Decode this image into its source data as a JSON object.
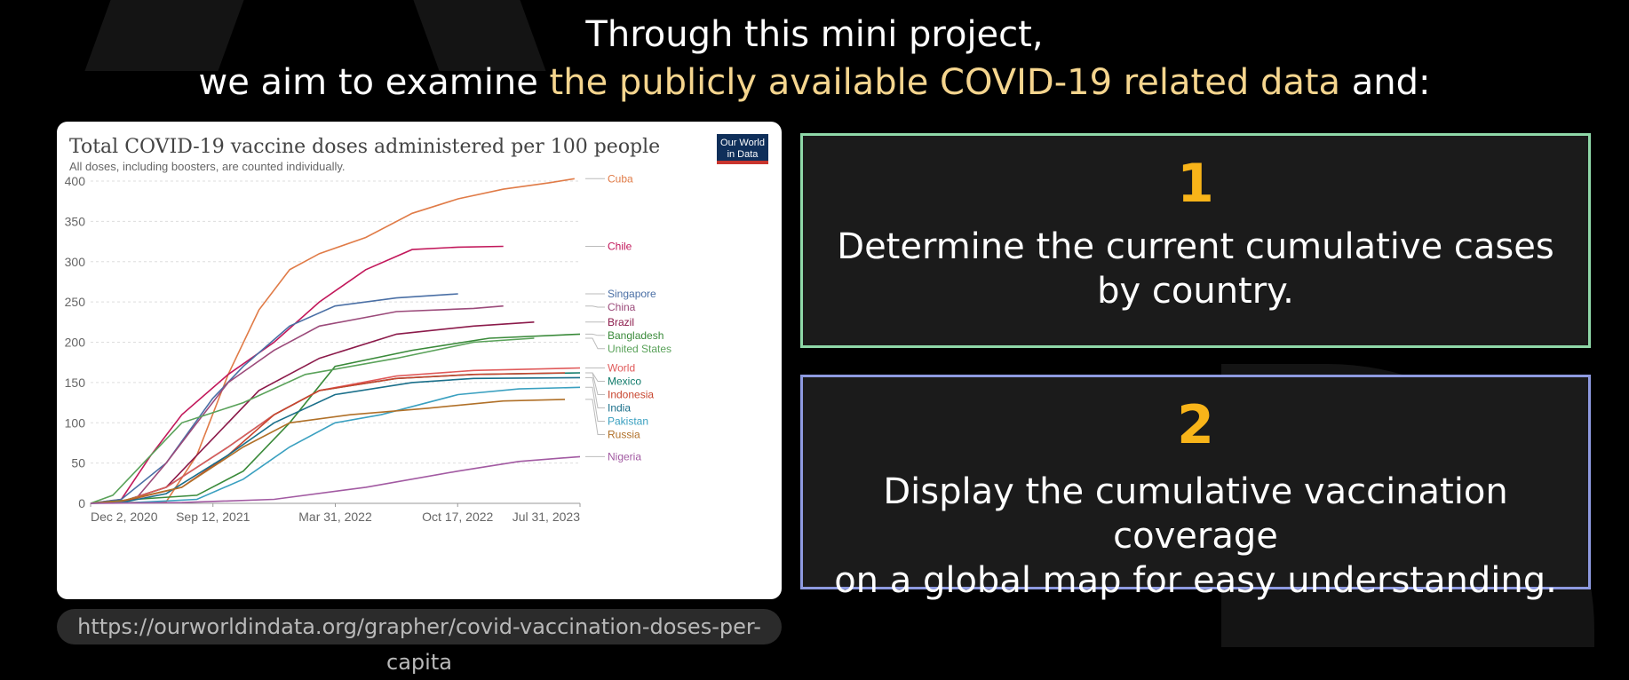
{
  "header": {
    "line1": "Through this mini project,",
    "line2_pre": "we aim to examine ",
    "line2_highlight": "the publicly available COVID-19 related data",
    "line2_post": " and:"
  },
  "chart_data": {
    "type": "line",
    "title": "Total COVID-19 vaccine doses administered per 100 people",
    "subtitle": "All doses, including boosters, are counted individually.",
    "logo": "Our World in Data",
    "x_ticks": [
      "Dec 2, 2020",
      "Sep 12, 2021",
      "Mar 31, 2022",
      "Oct 17, 2022",
      "Jul 31, 2023"
    ],
    "y_ticks": [
      0,
      50,
      100,
      150,
      200,
      250,
      300,
      350,
      400
    ],
    "ylim": [
      0,
      400
    ],
    "xlim": [
      "2020-12-02",
      "2023-07-31"
    ],
    "grid": true,
    "legend_position": "right (line-end labels)",
    "series": [
      {
        "name": "Cuba",
        "color": "#e07b47",
        "points": [
          [
            "2020-12-02",
            0
          ],
          [
            "2021-05-01",
            2
          ],
          [
            "2021-07-01",
            60
          ],
          [
            "2021-09-01",
            160
          ],
          [
            "2021-11-01",
            240
          ],
          [
            "2022-01-01",
            290
          ],
          [
            "2022-03-01",
            310
          ],
          [
            "2022-06-01",
            330
          ],
          [
            "2022-09-01",
            360
          ],
          [
            "2022-12-01",
            378
          ],
          [
            "2023-03-01",
            390
          ],
          [
            "2023-06-01",
            398
          ],
          [
            "2023-07-20",
            403
          ]
        ]
      },
      {
        "name": "Chile",
        "color": "#c2185b",
        "points": [
          [
            "2020-12-02",
            0
          ],
          [
            "2021-02-01",
            5
          ],
          [
            "2021-04-01",
            60
          ],
          [
            "2021-06-01",
            110
          ],
          [
            "2021-09-01",
            160
          ],
          [
            "2021-12-01",
            200
          ],
          [
            "2022-03-01",
            250
          ],
          [
            "2022-06-01",
            290
          ],
          [
            "2022-09-01",
            315
          ],
          [
            "2022-12-01",
            318
          ],
          [
            "2023-03-01",
            319
          ]
        ]
      },
      {
        "name": "Singapore",
        "color": "#4a6fa5",
        "points": [
          [
            "2020-12-02",
            0
          ],
          [
            "2021-02-01",
            5
          ],
          [
            "2021-05-01",
            50
          ],
          [
            "2021-08-01",
            130
          ],
          [
            "2021-10-01",
            170
          ],
          [
            "2022-01-01",
            220
          ],
          [
            "2022-04-01",
            245
          ],
          [
            "2022-08-01",
            255
          ],
          [
            "2022-12-01",
            260
          ]
        ]
      },
      {
        "name": "China",
        "color": "#9b4a7a",
        "points": [
          [
            "2020-12-02",
            0
          ],
          [
            "2021-03-01",
            5
          ],
          [
            "2021-05-01",
            50
          ],
          [
            "2021-07-01",
            100
          ],
          [
            "2021-09-01",
            150
          ],
          [
            "2021-12-01",
            190
          ],
          [
            "2022-03-01",
            220
          ],
          [
            "2022-08-01",
            238
          ],
          [
            "2023-01-01",
            242
          ],
          [
            "2023-03-01",
            245
          ]
        ]
      },
      {
        "name": "Brazil",
        "color": "#8b1a4a",
        "points": [
          [
            "2020-12-02",
            0
          ],
          [
            "2021-02-01",
            2
          ],
          [
            "2021-05-01",
            20
          ],
          [
            "2021-08-01",
            80
          ],
          [
            "2021-11-01",
            140
          ],
          [
            "2022-03-01",
            180
          ],
          [
            "2022-08-01",
            210
          ],
          [
            "2023-01-01",
            220
          ],
          [
            "2023-05-01",
            225
          ]
        ]
      },
      {
        "name": "Bangladesh",
        "color": "#3a8a3a",
        "points": [
          [
            "2020-12-02",
            0
          ],
          [
            "2021-03-01",
            5
          ],
          [
            "2021-07-01",
            10
          ],
          [
            "2021-10-01",
            40
          ],
          [
            "2022-01-01",
            100
          ],
          [
            "2022-04-01",
            170
          ],
          [
            "2022-09-01",
            190
          ],
          [
            "2023-02-01",
            205
          ],
          [
            "2023-07-31",
            210
          ]
        ]
      },
      {
        "name": "United States",
        "color": "#5aa25a",
        "points": [
          [
            "2020-12-02",
            0
          ],
          [
            "2021-01-15",
            10
          ],
          [
            "2021-04-01",
            60
          ],
          [
            "2021-06-01",
            100
          ],
          [
            "2021-10-01",
            125
          ],
          [
            "2022-02-01",
            160
          ],
          [
            "2022-08-01",
            180
          ],
          [
            "2023-01-01",
            200
          ],
          [
            "2023-05-01",
            205
          ]
        ]
      },
      {
        "name": "Mexico",
        "color": "#0f7a6a",
        "points": [
          [
            "2020-12-02",
            0
          ],
          [
            "2021-02-01",
            2
          ],
          [
            "2021-05-01",
            20
          ],
          [
            "2021-09-01",
            70
          ],
          [
            "2021-12-01",
            110
          ],
          [
            "2022-03-01",
            140
          ],
          [
            "2022-08-01",
            155
          ],
          [
            "2023-01-01",
            160
          ],
          [
            "2023-07-31",
            162
          ]
        ]
      },
      {
        "name": "World",
        "color": "#e05a5a",
        "points": [
          [
            "2020-12-02",
            0
          ],
          [
            "2021-02-01",
            2
          ],
          [
            "2021-05-01",
            20
          ],
          [
            "2021-09-01",
            70
          ],
          [
            "2021-12-01",
            110
          ],
          [
            "2022-03-01",
            140
          ],
          [
            "2022-08-01",
            158
          ],
          [
            "2023-01-01",
            165
          ],
          [
            "2023-07-31",
            168
          ]
        ]
      },
      {
        "name": "Indonesia",
        "color": "#c8452e",
        "points": [
          [
            "2020-12-02",
            0
          ],
          [
            "2021-02-01",
            2
          ],
          [
            "2021-06-01",
            20
          ],
          [
            "2021-09-01",
            60
          ],
          [
            "2021-12-01",
            110
          ],
          [
            "2022-03-01",
            140
          ],
          [
            "2022-08-01",
            155
          ],
          [
            "2023-01-01",
            160
          ],
          [
            "2023-07-01",
            162
          ]
        ]
      },
      {
        "name": "India",
        "color": "#1a6f8a",
        "points": [
          [
            "2020-12-02",
            0
          ],
          [
            "2021-02-01",
            1
          ],
          [
            "2021-05-01",
            12
          ],
          [
            "2021-09-01",
            60
          ],
          [
            "2021-12-01",
            100
          ],
          [
            "2022-04-01",
            135
          ],
          [
            "2022-09-01",
            150
          ],
          [
            "2023-01-01",
            155
          ],
          [
            "2023-07-31",
            156
          ]
        ]
      },
      {
        "name": "Pakistan",
        "color": "#3aa0c0",
        "points": [
          [
            "2020-12-02",
            0
          ],
          [
            "2021-03-01",
            1
          ],
          [
            "2021-07-01",
            5
          ],
          [
            "2021-10-01",
            30
          ],
          [
            "2022-01-01",
            70
          ],
          [
            "2022-04-01",
            100
          ],
          [
            "2022-07-01",
            110
          ],
          [
            "2022-12-01",
            135
          ],
          [
            "2023-04-01",
            142
          ],
          [
            "2023-07-31",
            144
          ]
        ]
      },
      {
        "name": "Russia",
        "color": "#b07028",
        "points": [
          [
            "2020-12-02",
            0
          ],
          [
            "2021-02-01",
            3
          ],
          [
            "2021-06-01",
            20
          ],
          [
            "2021-10-01",
            70
          ],
          [
            "2022-01-01",
            100
          ],
          [
            "2022-05-01",
            110
          ],
          [
            "2022-10-01",
            118
          ],
          [
            "2023-03-01",
            127
          ],
          [
            "2023-07-01",
            129
          ]
        ]
      },
      {
        "name": "Nigeria",
        "color": "#a25aa2",
        "points": [
          [
            "2020-12-02",
            0
          ],
          [
            "2021-06-01",
            1
          ],
          [
            "2021-12-01",
            5
          ],
          [
            "2022-06-01",
            20
          ],
          [
            "2022-12-01",
            40
          ],
          [
            "2023-04-01",
            52
          ],
          [
            "2023-07-31",
            58
          ]
        ]
      }
    ]
  },
  "source_url": "https://ourworldindata.org/grapher/covid-vaccination-doses-per-capita",
  "goals": [
    {
      "number": "1",
      "text_line1": "Determine the current cumulative cases",
      "text_line2": "by country."
    },
    {
      "number": "2",
      "text_line1": "Display the cumulative vaccination coverage",
      "text_line2": "on a global map for easy understanding."
    }
  ],
  "colors": {
    "highlight": "#f5d58e",
    "number": "#f8b419",
    "box1_border": "#8fd8a8",
    "box2_border": "#8e9ae0"
  }
}
